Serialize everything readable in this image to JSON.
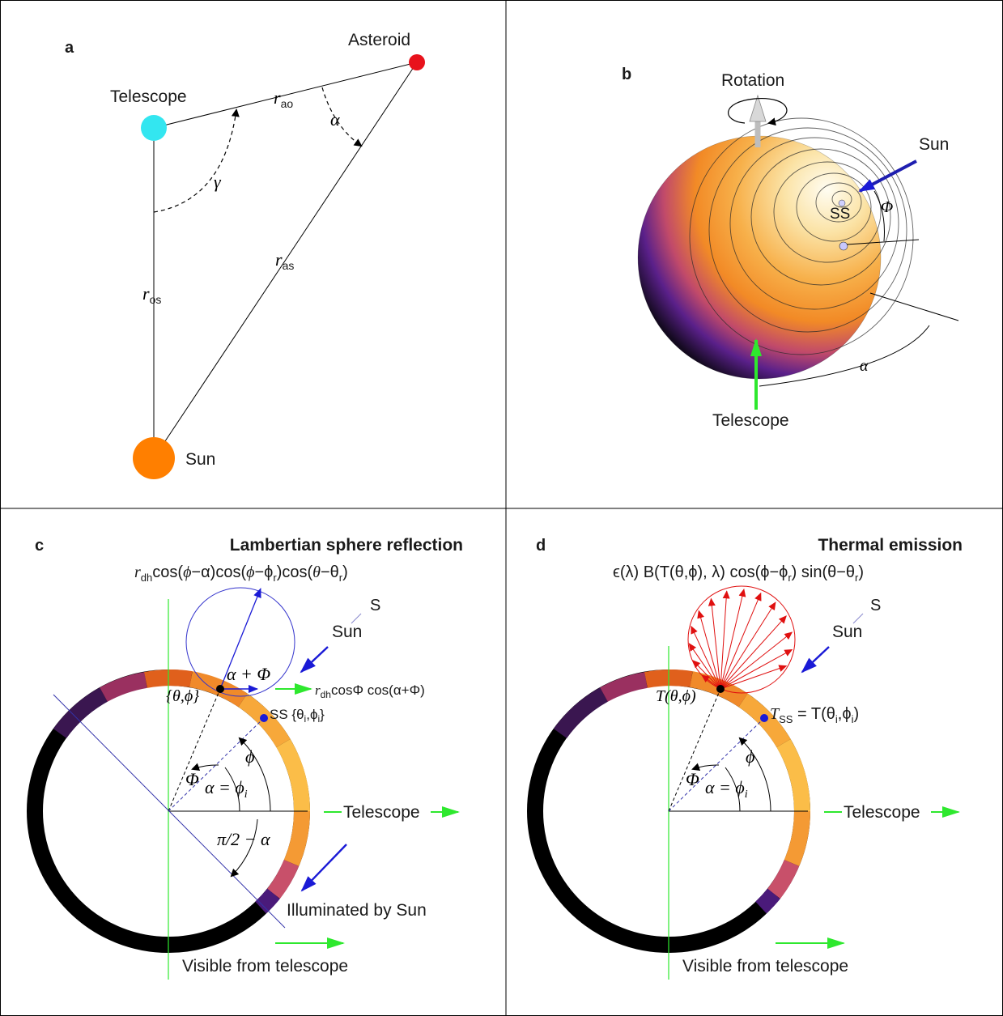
{
  "panel_a": {
    "letter": "a",
    "asteroid": "Asteroid",
    "telescope": "Telescope",
    "sun": "Sun",
    "r_ao_main": "r",
    "r_ao_sub": "ao",
    "r_as_main": "r",
    "r_as_sub": "as",
    "r_os_main": "r",
    "r_os_sub": "os",
    "alpha": "α",
    "gamma": "γ",
    "colors": {
      "telescope": "#33e6f0",
      "asteroid": "#e8121c",
      "sun": "#ff7f00"
    }
  },
  "panel_b": {
    "letter": "b",
    "rotation": "Rotation",
    "sun": "Sun",
    "ss": "SS",
    "phi": "Φ",
    "alpha": "α",
    "telescope": "Telescope"
  },
  "panel_c": {
    "letter": "c",
    "title": "Lambertian sphere reflection",
    "formula_r": "r",
    "formula_dh": "dh",
    "formula_rest1": "cos(",
    "formula_phi1": "ϕ",
    "formula_minus_alpha": "−α)cos(",
    "formula_phi2": "ϕ",
    "formula_minus_phir": "−ϕ",
    "formula_r_sub": "r",
    "formula_close1": ")cos(",
    "formula_theta": "θ",
    "formula_minus_theta": "−θ",
    "formula_close2": ")",
    "s_label": "S",
    "sun_label": "Sun",
    "alpha_plus_phi": "α + Φ",
    "theta_phi": "{θ,ϕ}",
    "out_r": "r",
    "out_dh": "dh",
    "out_rest": "cosΦ cos(α+Φ)",
    "ss_label": "SS {θ",
    "ss_i": "i",
    "ss_phi": ",ϕ",
    "ss_i2": "i",
    "ss_close": "}",
    "phi_small": "ϕ",
    "Phi_big": "Φ",
    "alpha_eq": "α = ϕ",
    "alpha_eq_sub": "i",
    "telescope": "Telescope",
    "pi_half": "π/2 − α",
    "illuminated": "Illuminated by Sun",
    "visible": "Visible from telescope"
  },
  "panel_d": {
    "letter": "d",
    "title": "Thermal emission",
    "formula": "ϵ(λ) B(T(θ,ϕ), λ) cos(ϕ−ϕ",
    "formula_sub": "r",
    "formula_tail": ") sin(θ−θ",
    "formula_sub2": "r",
    "formula_end": ")",
    "s_label": "S",
    "sun_label": "Sun",
    "t_theta_phi": "T(θ,ϕ)",
    "tss_T": "T",
    "tss_sub": "SS",
    "tss_rest": " = T(θ",
    "tss_i": "i",
    "tss_phi": ",ϕ",
    "tss_i2": "i",
    "tss_close": ")",
    "phi_small": "ϕ",
    "Phi_big": "Φ",
    "alpha_eq": "α = ϕ",
    "alpha_eq_sub": "i",
    "telescope": "Telescope",
    "visible": "Visible from telescope"
  }
}
